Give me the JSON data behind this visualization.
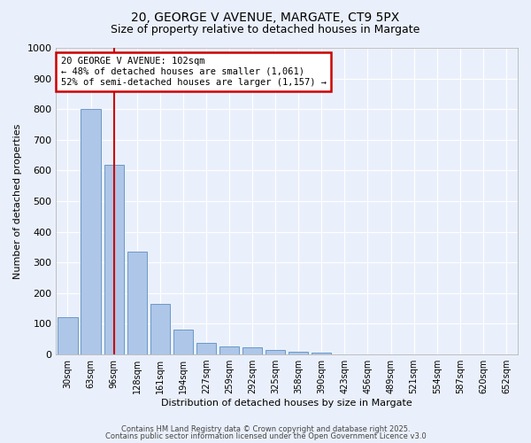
{
  "title1": "20, GEORGE V AVENUE, MARGATE, CT9 5PX",
  "title2": "Size of property relative to detached houses in Margate",
  "xlabel": "Distribution of detached houses by size in Margate",
  "ylabel": "Number of detached properties",
  "bar_values": [
    122,
    800,
    620,
    335,
    165,
    82,
    38,
    27,
    22,
    15,
    8,
    5,
    0,
    0,
    0,
    0,
    0,
    0,
    0,
    0
  ],
  "categories": [
    "30sqm",
    "63sqm",
    "96sqm",
    "128sqm",
    "161sqm",
    "194sqm",
    "227sqm",
    "259sqm",
    "292sqm",
    "325sqm",
    "358sqm",
    "390sqm",
    "423sqm",
    "456sqm",
    "489sqm",
    "521sqm",
    "554sqm",
    "587sqm",
    "620sqm",
    "652sqm"
  ],
  "bar_color": "#aec6e8",
  "bar_edge_color": "#5a8fc0",
  "bar_width": 0.85,
  "ylim": [
    0,
    1000
  ],
  "yticks": [
    0,
    100,
    200,
    300,
    400,
    500,
    600,
    700,
    800,
    900,
    1000
  ],
  "red_line_index": 2,
  "annotation_text": "20 GEORGE V AVENUE: 102sqm\n← 48% of detached houses are smaller (1,061)\n52% of semi-detached houses are larger (1,157) →",
  "annotation_box_color": "#ffffff",
  "annotation_box_edge": "#cc0000",
  "vline_color": "#cc0000",
  "footer1": "Contains HM Land Registry data © Crown copyright and database right 2025.",
  "footer2": "Contains public sector information licensed under the Open Government Licence v3.0",
  "background_color": "#eaf0fb",
  "grid_color": "#ffffff"
}
